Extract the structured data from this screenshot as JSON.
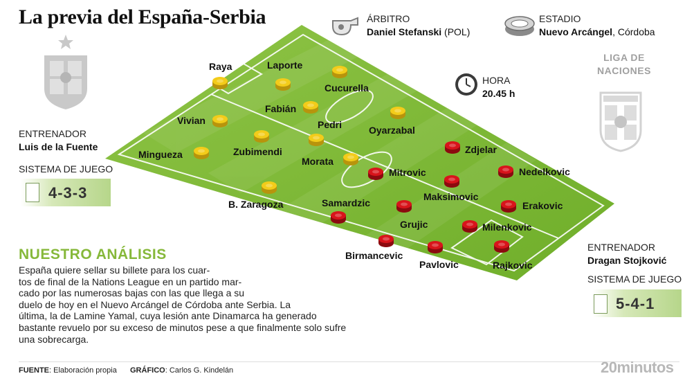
{
  "title": "La previa del España-Serbia",
  "referee": {
    "label": "ÁRBITRO",
    "name": "Daniel Stefanski",
    "country": "(POL)",
    "icon": "whistle-icon"
  },
  "stadium": {
    "label": "ESTADIO",
    "name": "Nuevo Arcángel",
    "city": ", Córdoba",
    "icon": "stadium-icon"
  },
  "time": {
    "label": "HORA",
    "value": "20.45 h",
    "icon": "clock-icon"
  },
  "competition": {
    "line1": "LIGA DE",
    "line2": "NACIONES"
  },
  "spain": {
    "coach_label": "ENTRENADOR",
    "coach": "Luis de la Fuente",
    "system_label": "SISTEMA DE JUEGO",
    "system": "4-3-3",
    "crest": "spain-crest-icon",
    "color": "#f3cc1a",
    "players": [
      "Raya",
      "Laporte",
      "Cucurella",
      "Vivian",
      "Fabián",
      "Oyarzabal",
      "Pedri",
      "Mingueza",
      "Zubimendi",
      "Morata",
      "B. Zaragoza"
    ]
  },
  "serbia": {
    "coach_label": "ENTRENADOR",
    "coach": "Dragan Stojković",
    "system_label": "SISTEMA DE JUEGO",
    "system": "5-4-1",
    "crest": "serbia-crest-icon",
    "color": "#d8141b",
    "players": [
      "Zdjelar",
      "Mitrovic",
      "Nedelkovic",
      "Maksimovic",
      "Samardzic",
      "Erakovic",
      "Grujic",
      "Milenkovic",
      "Birmancevic",
      "Pavlovic",
      "Rajkovic"
    ]
  },
  "analysis": {
    "title": "NUESTRO ANÁLISIS",
    "lines": [
      "España quiere sellar su billete para los cuar-",
      "tos de final de la Nations League en un partido mar-",
      "cado por las numerosas bajas con las que llega a su",
      "duelo de hoy en el Nuevo Arcángel de Córdoba ante Serbia. La",
      "última, la de Lamine Yamal, cuya lesión ante Dinamarca ha generado",
      "bastante revuelo por su exceso de minutos pese a que finalmente solo sufre",
      "una sobrecarga."
    ]
  },
  "footer": {
    "source_label": "FUENTE",
    "source": ": Elaboración propia",
    "graphic_label": "GRÁFICO",
    "graphic": ": Carlos G. Kindelán",
    "brand": "20minutos"
  }
}
